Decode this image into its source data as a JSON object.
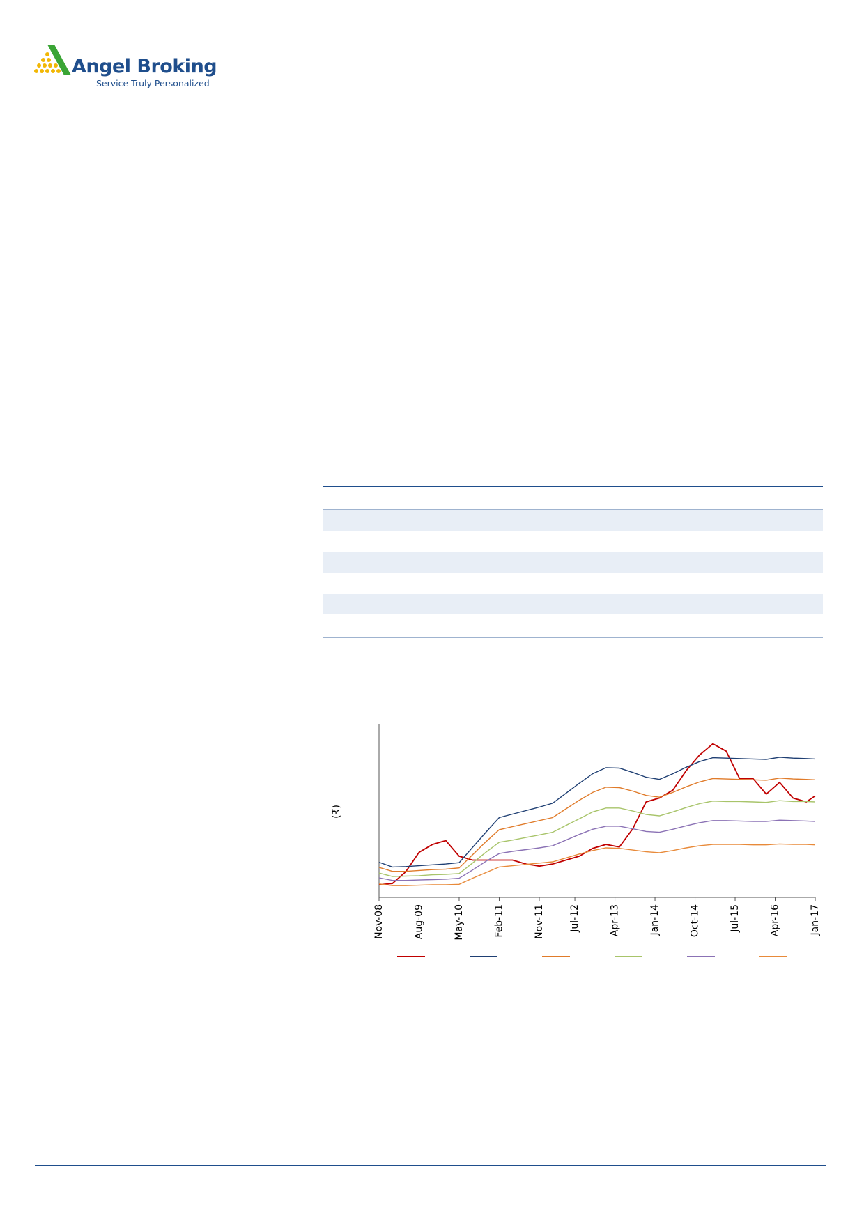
{
  "header": {
    "brand": "Angel Broking",
    "tagline": "Service Truly Personalized"
  },
  "chart_data": {
    "type": "line",
    "y_label": "(₹)",
    "x": [
      "Nov-08",
      "Feb-09",
      "May-09",
      "Aug-09",
      "Nov-09",
      "Feb-10",
      "May-10",
      "Aug-10",
      "Nov-10",
      "Feb-11",
      "May-11",
      "Aug-11",
      "Nov-11",
      "Feb-12",
      "May-12",
      "Aug-12",
      "Nov-12",
      "Feb-13",
      "May-13",
      "Aug-13",
      "Nov-13",
      "Feb-14",
      "May-14",
      "Aug-14",
      "Nov-14",
      "Feb-15",
      "May-15",
      "Aug-15",
      "Nov-15",
      "Feb-16",
      "May-16",
      "Aug-16",
      "Nov-16",
      "Jan-17"
    ],
    "xticks": [
      "Nov-08",
      "Aug-09",
      "May-10",
      "Feb-11",
      "Nov-11",
      "Jul-12",
      "Apr-13",
      "Jan-14",
      "Oct-14",
      "Jul-15",
      "Apr-16",
      "Jan-17"
    ],
    "ylim": [
      0,
      400
    ],
    "series": [
      {
        "color": "#c00000",
        "values": [
          29,
          32,
          59,
          104,
          122,
          131,
          95,
          86,
          86,
          86,
          86,
          77,
          72,
          77,
          86,
          95,
          113,
          122,
          116,
          158,
          220,
          229,
          247,
          292,
          328,
          354,
          337,
          274,
          274,
          238,
          265,
          229,
          220,
          234
        ]
      },
      {
        "color": "#1f3f73",
        "values": [
          81,
          70,
          71,
          73,
          75,
          77,
          80,
          115,
          150,
          184,
          192,
          200,
          208,
          217,
          240,
          263,
          285,
          299,
          298,
          288,
          277,
          272,
          285,
          300,
          313,
          322,
          321,
          320,
          319,
          318,
          323,
          321,
          320,
          319
        ]
      },
      {
        "color": "#e07b2a",
        "values": [
          69,
          60,
          60,
          62,
          64,
          65,
          68,
          98,
          128,
          156,
          163,
          170,
          177,
          184,
          204,
          224,
          242,
          254,
          253,
          245,
          235,
          231,
          242,
          255,
          266,
          274,
          273,
          272,
          271,
          270,
          275,
          273,
          272,
          271
        ]
      },
      {
        "color": "#a8c46a",
        "values": [
          56,
          48,
          49,
          50,
          52,
          53,
          55,
          79,
          104,
          127,
          132,
          138,
          144,
          150,
          166,
          181,
          197,
          206,
          206,
          199,
          191,
          188,
          197,
          207,
          216,
          222,
          221,
          221,
          220,
          219,
          223,
          221,
          221,
          220
        ]
      },
      {
        "color": "#8b72b5",
        "values": [
          45,
          39,
          39,
          40,
          41,
          42,
          44,
          63,
          83,
          101,
          106,
          110,
          114,
          119,
          132,
          145,
          157,
          164,
          164,
          158,
          152,
          150,
          157,
          165,
          172,
          177,
          177,
          176,
          175,
          175,
          178,
          177,
          176,
          175
        ]
      },
      {
        "color": "#e88a3a",
        "values": [
          31,
          27,
          27,
          28,
          29,
          29,
          30,
          44,
          57,
          70,
          73,
          76,
          79,
          82,
          91,
          100,
          108,
          114,
          113,
          109,
          105,
          103,
          108,
          114,
          119,
          122,
          122,
          122,
          121,
          121,
          123,
          122,
          122,
          121
        ]
      }
    ]
  }
}
